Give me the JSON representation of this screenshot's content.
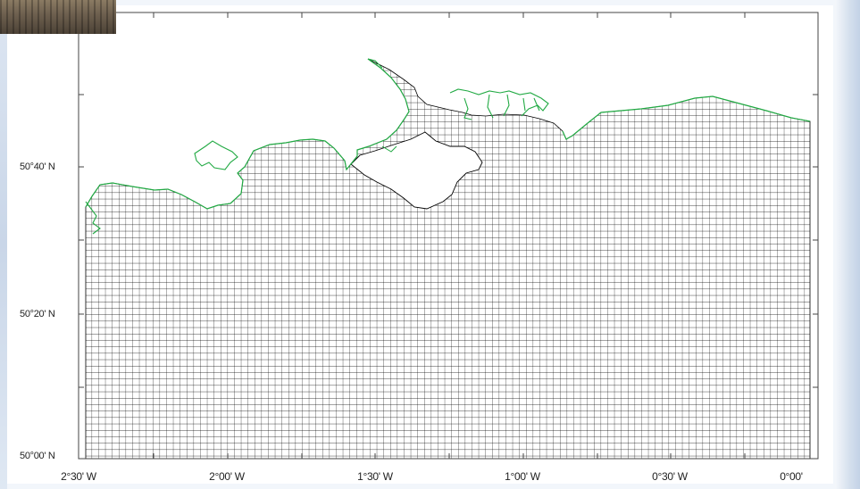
{
  "map": {
    "region": "English Channel coast",
    "grid": "curvilinear ocean model grid (black mesh)",
    "coastline_color": "#22aa44",
    "grid_color": "#000000",
    "background_color": "#ffffff",
    "lat_labels": [
      "50°40' N",
      "50°20' N",
      "50°00' N"
    ],
    "lon_labels": [
      "2°30' W",
      "2°00' W",
      "1°30' W",
      "1°00' W",
      "0°30' W",
      "0°00'"
    ]
  }
}
